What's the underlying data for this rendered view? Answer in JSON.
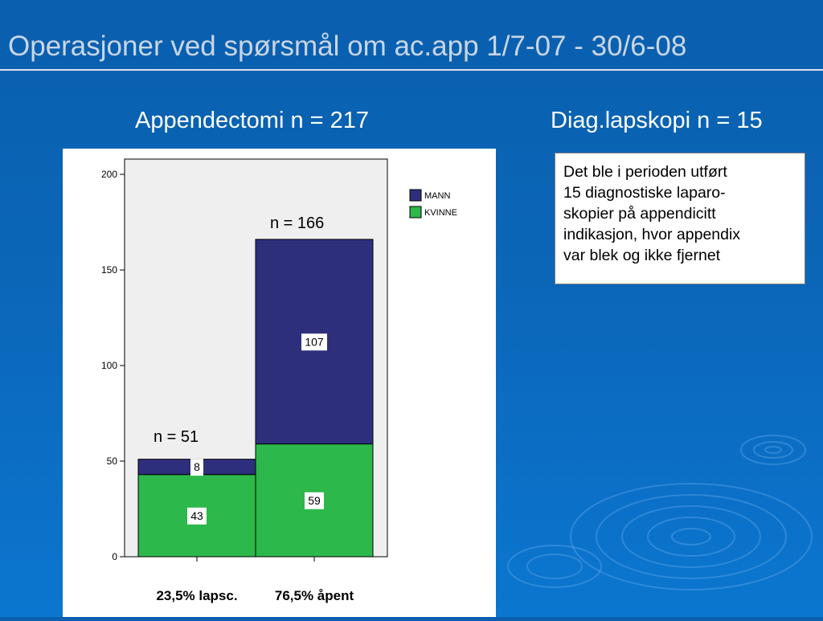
{
  "slide": {
    "title": "Operasjoner ved spørsmål om ac.app  1/7-07  -  30/6-08"
  },
  "headings": {
    "left": "Appendectomi  n = 217",
    "right": "Diag.lapskopi  n = 15"
  },
  "info_box": {
    "lines": [
      "Det ble i perioden utført",
      "15 diagnostiske laparo-",
      "skopier på appendicitt",
      "indikasjon, hvor appendix",
      "var blek og ikke fjernet"
    ]
  },
  "colors": {
    "mann": "#2d2f7d",
    "kvinne": "#2cb84a",
    "plot_bg": "#efefef"
  },
  "chart_data": {
    "type": "bar",
    "stacked": true,
    "categories": [
      "23,5% lapsc.",
      "76,5% åpent"
    ],
    "series": [
      {
        "name": "KVINNE",
        "values": [
          43,
          59
        ]
      },
      {
        "name": "MANN",
        "values": [
          8,
          107
        ]
      }
    ],
    "ylim": [
      0,
      208
    ],
    "yticks": [
      0,
      50,
      100,
      150,
      200
    ],
    "legend": "top-right",
    "grid": false,
    "annotations": [
      "n = 51",
      "n = 166"
    ]
  }
}
